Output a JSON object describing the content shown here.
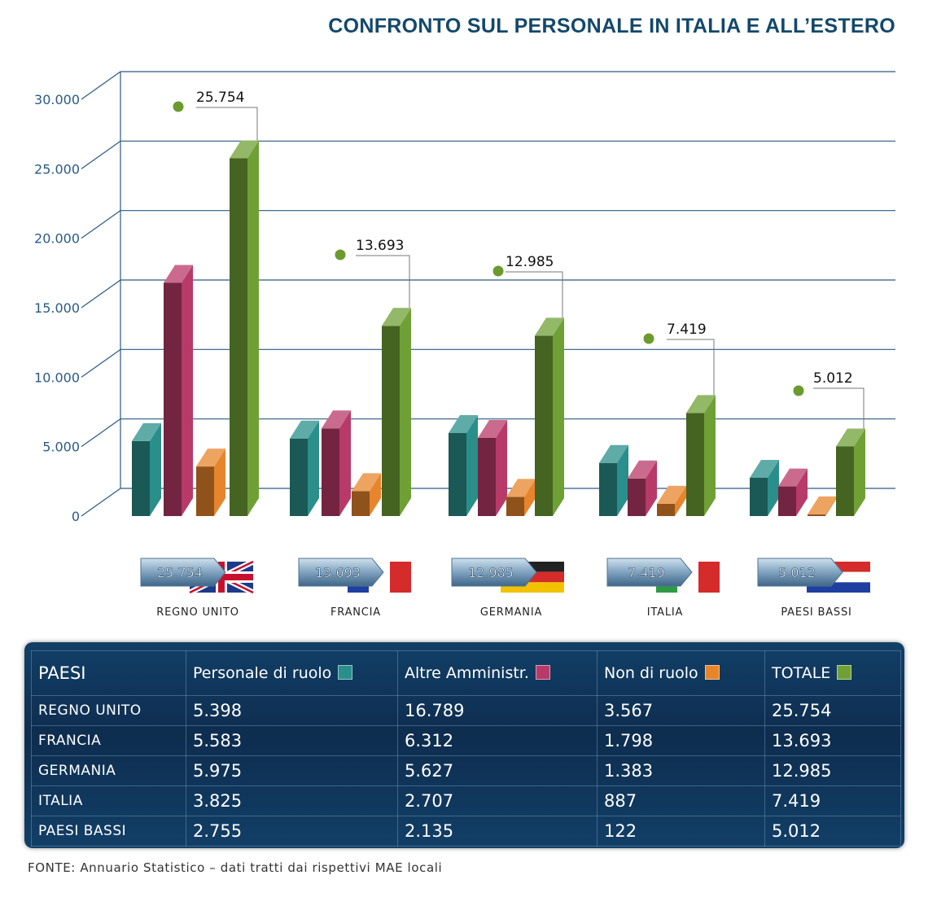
{
  "title": "CONFRONTO SUL PERSONALE IN ITALIA E ALL’ESTERO",
  "colors": {
    "personale_di_ruolo": "#2a8f8b",
    "altre_amministr": "#b83a68",
    "non_di_ruolo": "#e7852c",
    "totale": "#6fa036",
    "grid": "#2a5a86",
    "axis_text": "#2a5a86",
    "callout_dot": "#6b9a2e"
  },
  "chart_data": {
    "type": "bar",
    "categories": [
      "REGNO UNITO",
      "FRANCIA",
      "GERMANIA",
      "ITALIA",
      "PAESI BASSI"
    ],
    "series": [
      {
        "name": "Personale di ruolo",
        "values": [
          5398,
          5583,
          5975,
          3825,
          2755
        ]
      },
      {
        "name": "Altre Amministr.",
        "values": [
          16789,
          6312,
          5627,
          2707,
          2135
        ]
      },
      {
        "name": "Non di ruolo",
        "values": [
          3567,
          1798,
          1383,
          887,
          122
        ]
      },
      {
        "name": "TOTALE",
        "values": [
          25754,
          13693,
          12985,
          7419,
          5012
        ]
      }
    ],
    "yticks": [
      "0",
      "5.000",
      "10.000",
      "15.000",
      "20.000",
      "25.000",
      "30.000"
    ],
    "ylim": [
      0,
      30000
    ],
    "callouts": [
      "25.754",
      "13.693",
      "12.985",
      "7.419",
      "5.012"
    ],
    "grid": true,
    "style": "3d"
  },
  "table": {
    "headers": [
      "PAESI",
      "Personale di ruolo",
      "Altre Amministr.",
      "Non di ruolo",
      "TOTALE"
    ],
    "rows": [
      [
        "REGNO UNITO",
        "5.398",
        "16.789",
        "3.567",
        "25.754"
      ],
      [
        "FRANCIA",
        "5.583",
        "6.312",
        "1.798",
        "13.693"
      ],
      [
        "GERMANIA",
        "5.975",
        "5.627",
        "1.383",
        "12.985"
      ],
      [
        "ITALIA",
        "3.825",
        "2.707",
        "887",
        "7.419"
      ],
      [
        "PAESI BASSI",
        "2.755",
        "2.135",
        "122",
        "5.012"
      ]
    ]
  },
  "flags": [
    "uk-flag",
    "france-flag",
    "germany-flag",
    "italy-flag",
    "netherlands-flag"
  ],
  "source": "FONTE: Annuario Statistico – dati tratti dai rispettivi MAE locali"
}
